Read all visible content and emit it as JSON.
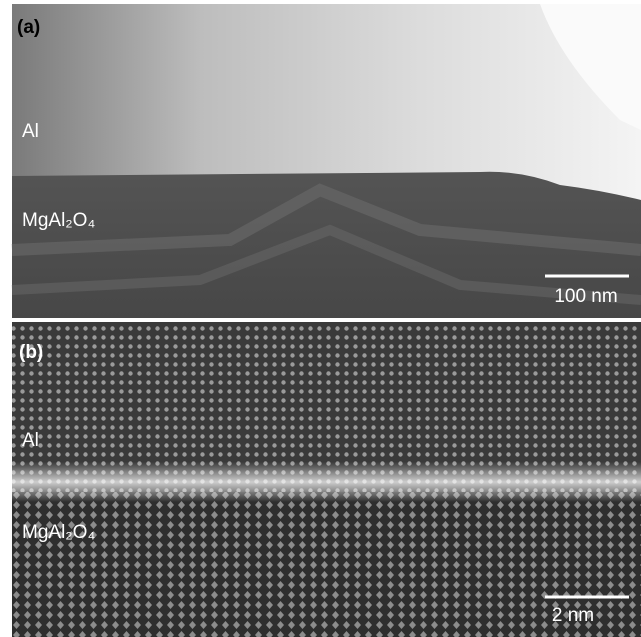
{
  "panels": [
    {
      "label": "(a)",
      "layers": [
        "Al",
        "MgAl₂O₄"
      ],
      "scale_bar": "100 nm"
    },
    {
      "label": "(b)",
      "layers": [
        "Al",
        "MgAl₂O₄"
      ],
      "scale_bar": "2 nm"
    }
  ]
}
